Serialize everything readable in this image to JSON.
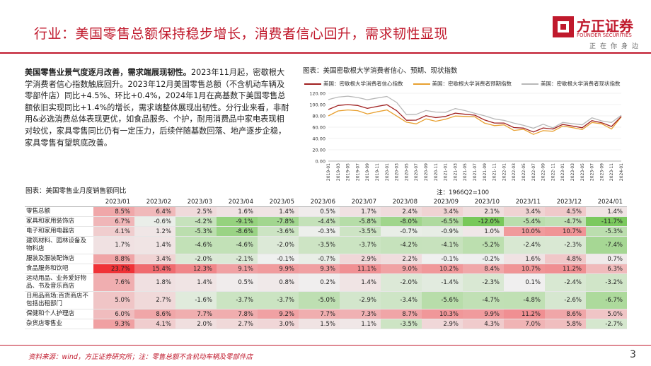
{
  "header": {
    "title": "行业：美国零售总额保持稳步增长，消费者信心回升，需求韧性显现",
    "logo_cn": "方正证券",
    "logo_en": "FOUNDER SECURITIES",
    "logo_slogan": "正在你身边",
    "brand_color": "#c0192c"
  },
  "paragraph": {
    "lead": "美国零售业景气度逐月改善，需求端展现韧性。",
    "body": "2023年11月起，密歇根大学消费者信心指数触底回升。2023年12月美国零售总额（不含机动车辆及零部件店）同比+4.5%、环比+0.4%，2024年1月在高基数下美国零售总额依旧实现同比+1.4%的增长，需求端整体展现出韧性。分行业来看，非耐用&必选消费总体表现更优，如食品服务、个护，耐用消费品中家电表现相对较优，家具零售同比仍有一定压力，后续伴随基数回落、地产逐步企稳，家具零售有望筑底改善。"
  },
  "chart_data": {
    "type": "line",
    "title": "图表：美国密歇根大学消费者信心、预期、现状指数",
    "note": "注：1966Q2=100",
    "ylim": [
      0,
      120
    ],
    "yticks": [
      "0.00",
      "20.00",
      "40.00",
      "60.00",
      "80.00",
      "100.00",
      "120.00"
    ],
    "x": [
      "2019-01",
      "2019-03",
      "2019-05",
      "2019-07",
      "2019-09",
      "2019-11",
      "2020-01",
      "2020-03",
      "2020-05",
      "2020-07",
      "2020-09",
      "2020-11",
      "2021-01",
      "2021-03",
      "2021-05",
      "2021-07",
      "2021-09",
      "2021-11",
      "2022-01",
      "2022-03",
      "2022-05",
      "2022-07",
      "2022-09",
      "2022-11",
      "2023-01",
      "2023-03",
      "2023-05",
      "2023-07",
      "2023-09",
      "2023-11",
      "2024-01"
    ],
    "series": [
      {
        "name": "美国：密歇根大学消费者信心指数",
        "color": "#a02020",
        "values": [
          91.2,
          98.4,
          100.0,
          98.4,
          93.2,
          96.8,
          99.8,
          89.1,
          72.3,
          72.5,
          80.4,
          76.9,
          79.0,
          84.9,
          82.9,
          81.2,
          72.8,
          67.4,
          67.2,
          59.4,
          58.4,
          51.5,
          58.6,
          56.8,
          64.9,
          62.0,
          59.0,
          71.6,
          67.9,
          61.3,
          79.0
        ]
      },
      {
        "name": "美国：密歇根大学消费者预期指数",
        "color": "#e8a030",
        "values": [
          80.0,
          88.8,
          90.5,
          89.3,
          83.4,
          87.3,
          90.5,
          79.7,
          68.9,
          65.9,
          74.6,
          70.5,
          74.0,
          79.7,
          79.0,
          78.4,
          67.1,
          62.8,
          64.1,
          54.3,
          56.3,
          47.3,
          53.9,
          52.7,
          62.0,
          59.2,
          55.7,
          68.3,
          66.0,
          56.8,
          78.2
        ]
      },
      {
        "name": "美国：密歇根大学消费者现状指数",
        "color": "#b8b8b8",
        "values": [
          108.8,
          113.3,
          114.9,
          112.5,
          108.5,
          111.6,
          114.4,
          103.7,
          82.3,
          82.8,
          89.5,
          86.7,
          86.2,
          93.0,
          89.4,
          84.5,
          80.1,
          74.6,
          72.0,
          67.2,
          63.3,
          58.1,
          65.3,
          58.8,
          68.4,
          66.3,
          64.1,
          76.6,
          71.1,
          68.3,
          81.1
        ]
      }
    ]
  },
  "table": {
    "title": "图表：美国零售业月度销售额同比",
    "columns": [
      "2023/01",
      "2023/02",
      "2023/03",
      "2023/04",
      "2023/05",
      "2023/06",
      "2023/07",
      "2023/08",
      "2023/09",
      "2023/10",
      "2023/11",
      "2023/12",
      "2024/01"
    ],
    "rows": [
      {
        "label": "零售总额",
        "values": [
          8.5,
          6.4,
          2.5,
          1.6,
          1.4,
          0.5,
          1.7,
          2.4,
          3.4,
          2.1,
          3.4,
          4.5,
          1.4
        ]
      },
      {
        "label": "家具和家用装饰店",
        "values": [
          6.7,
          -0.6,
          -4.2,
          -9.1,
          -7.8,
          -4.4,
          -5.8,
          -8.0,
          -6.5,
          -12.0,
          -5.4,
          -4.7,
          -11.7
        ]
      },
      {
        "label": "电子和家用电器店",
        "values": [
          4.1,
          1.2,
          -5.3,
          -8.6,
          -3.6,
          -0.3,
          -3.5,
          -0.7,
          -0.9,
          1.0,
          10.0,
          10.7,
          -5.3
        ]
      },
      {
        "label": "建筑材料、园林设备及物料店",
        "values": [
          1.7,
          1.4,
          -4.6,
          -4.6,
          -2.0,
          -3.5,
          -3.7,
          -4.2,
          -4.1,
          -5.2,
          -2.4,
          -2.3,
          -7.4
        ]
      },
      {
        "label": "服装及服装配饰店",
        "values": [
          8.8,
          3.4,
          -2.0,
          -2.1,
          -0.1,
          -0.7,
          2.9,
          2.2,
          -0.1,
          -0.2,
          1.6,
          4.8,
          0.7
        ]
      },
      {
        "label": "食品服务和饮吧",
        "values": [
          23.7,
          15.4,
          12.3,
          9.1,
          9.9,
          9.3,
          11.1,
          9.0,
          10.2,
          8.4,
          10.7,
          11.2,
          6.3
        ]
      },
      {
        "label": "运动用品、业务爱好物品、书及音乐商店",
        "values": [
          7.6,
          1.8,
          1.4,
          0.5,
          0.8,
          0.2,
          1.4,
          -2.0,
          -1.4,
          -2.3,
          0.1,
          -2.4,
          -3.2
        ]
      },
      {
        "label": "日用品商场:百货商店不包括出租部门",
        "values": [
          5.0,
          2.7,
          -1.6,
          -3.7,
          -3.7,
          -5.0,
          -2.9,
          -3.4,
          -5.6,
          -4.7,
          -4.8,
          -2.6,
          -6.7
        ]
      },
      {
        "label": "保健和个人护理店",
        "values": [
          6.0,
          8.6,
          7.7,
          7.8,
          9.2,
          7.7,
          7.3,
          8.7,
          10.3,
          9.9,
          11.2,
          8.6,
          5.0
        ]
      },
      {
        "label": "杂货店零售业",
        "values": [
          9.3,
          4.1,
          2.0,
          2.7,
          3.0,
          1.5,
          1.1,
          -3.5,
          2.9,
          4.3,
          7.0,
          5.8,
          -2.7
        ]
      }
    ]
  },
  "footer": {
    "source": "资料来源：wind，方正证券研究所；注：零售总额不含机动车辆及零部件店",
    "page_number": "3"
  }
}
